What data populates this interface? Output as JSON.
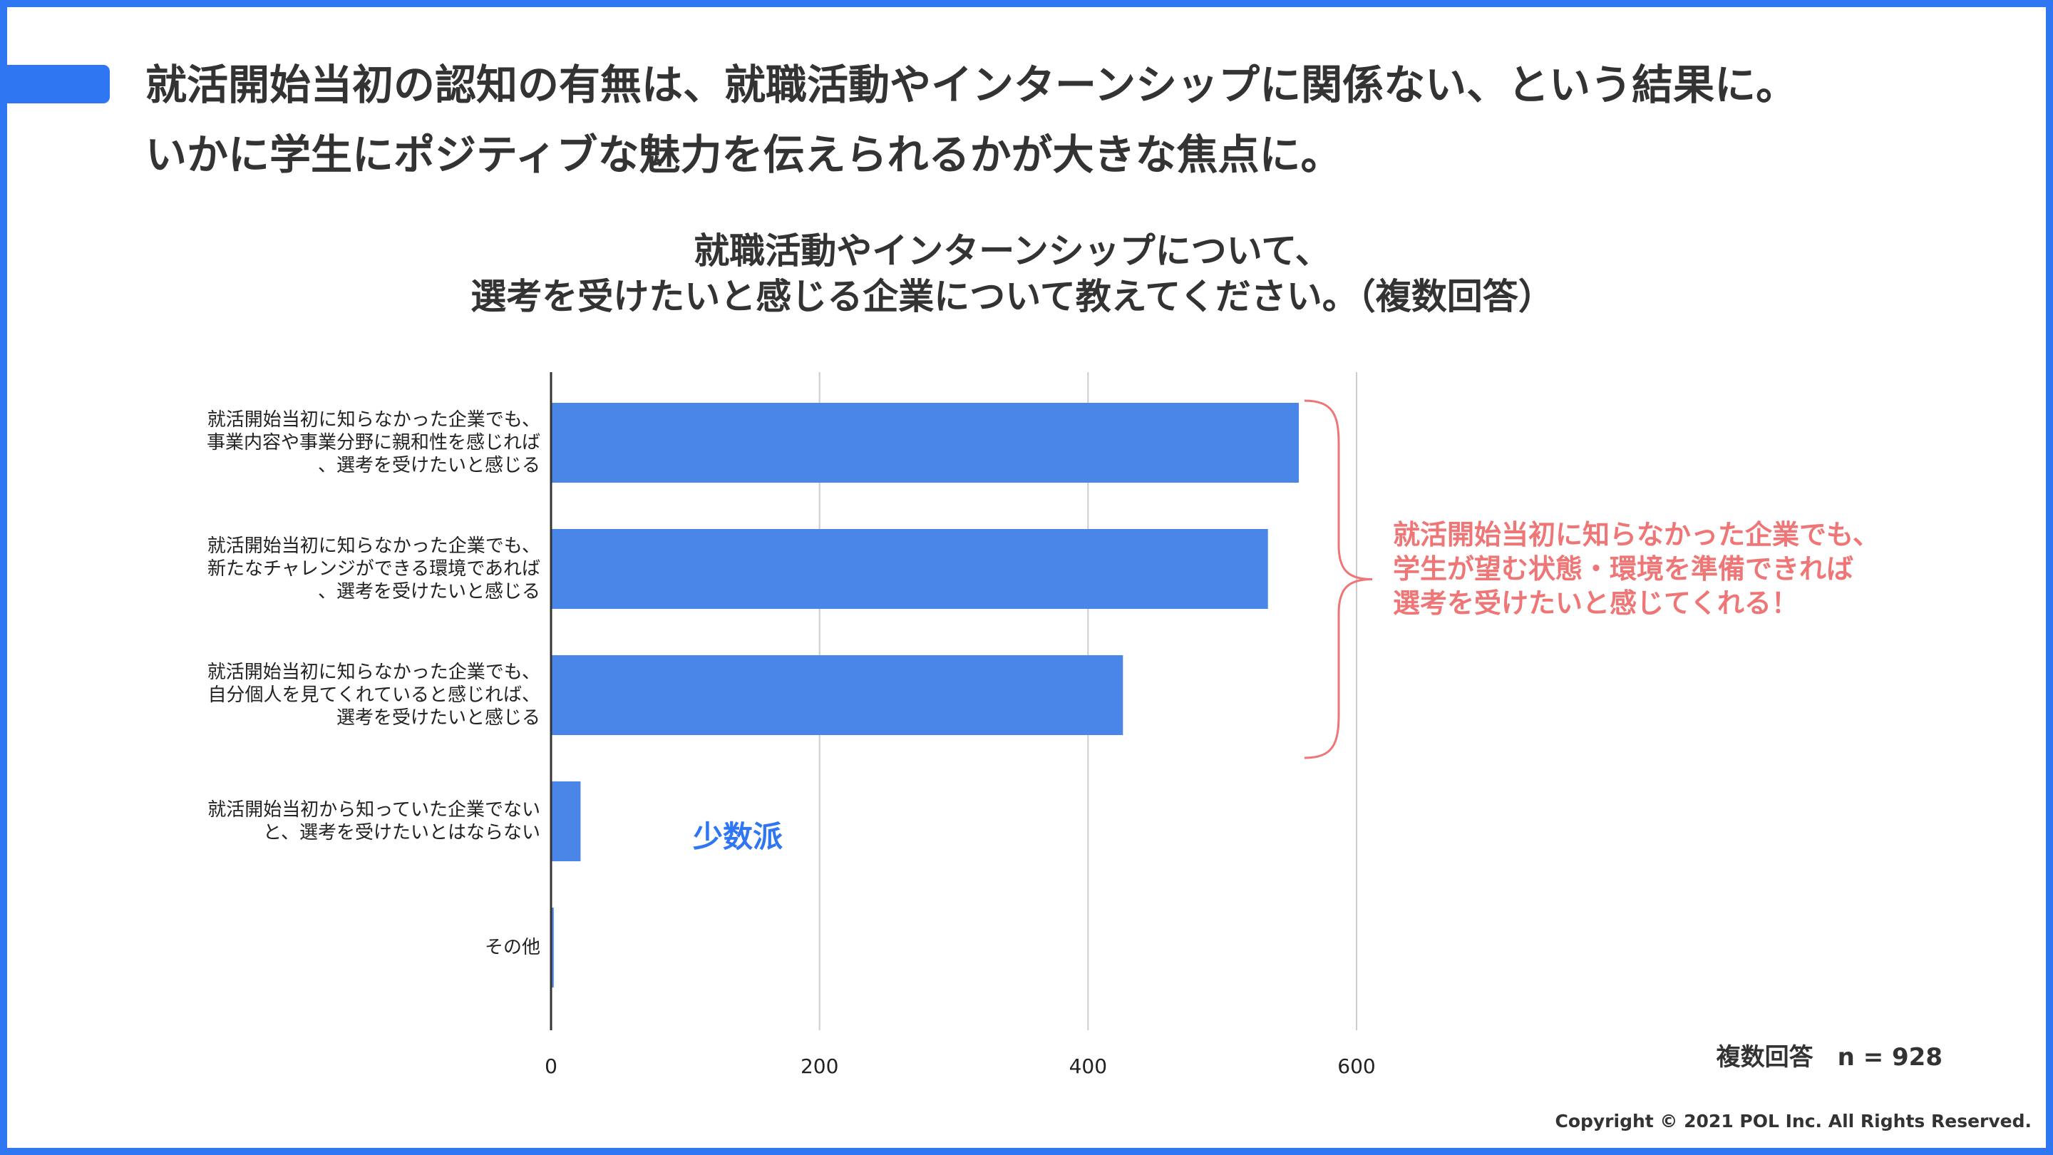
{
  "headline": {
    "line1": "就活開始当初の認知の有無は、就職活動やインターンシップに関係ない、という結果に。",
    "line2": "いかに学生にポジティブな魅力を伝えられるかが大きな焦点に。"
  },
  "chart_data": {
    "type": "bar",
    "orientation": "horizontal",
    "title": [
      "就職活動やインターンシップについて、",
      "選考を受けたいと感じる企業について教えてください。（複数回答）"
    ],
    "categories": [
      [
        "就活開始当初に知らなかった企業でも、",
        "事業内容や事業分野に親和性を感じれば",
        "、選考を受けたいと感じる"
      ],
      [
        "就活開始当初に知らなかった企業でも、",
        "新たなチャレンジができる環境であれば",
        "、選考を受けたいと感じる"
      ],
      [
        "就活開始当初に知らなかった企業でも、",
        "自分個人を見てくれていると感じれば、",
        "選考を受けたいと感じる"
      ],
      [
        "就活開始当初から知っていた企業でない",
        "と、選考を受けたいとはならない"
      ],
      [
        "その他"
      ]
    ],
    "values": [
      557,
      534,
      426,
      22,
      2
    ],
    "x_ticks": [
      "0",
      "200",
      "400",
      "600"
    ],
    "xlim": [
      0,
      600
    ],
    "grid": true,
    "bar_color": "#4a86e8",
    "xlabel": "",
    "ylabel": ""
  },
  "annotations": {
    "callout_lines": [
      "就活開始当初に知らなかった企業でも、",
      "学生が望む状態・環境を準備できれば",
      "選考を受けたいと感じてくれる！"
    ],
    "callout_color": "#ef7676",
    "minority_label": "少数派",
    "minority_color": "#2f76f2"
  },
  "footer": {
    "n_note": "複数回答　n = 928",
    "copyright": "Copyright © 2021 POL Inc. All Rights Reserved."
  },
  "theme": {
    "accent": "#2f76f2"
  }
}
